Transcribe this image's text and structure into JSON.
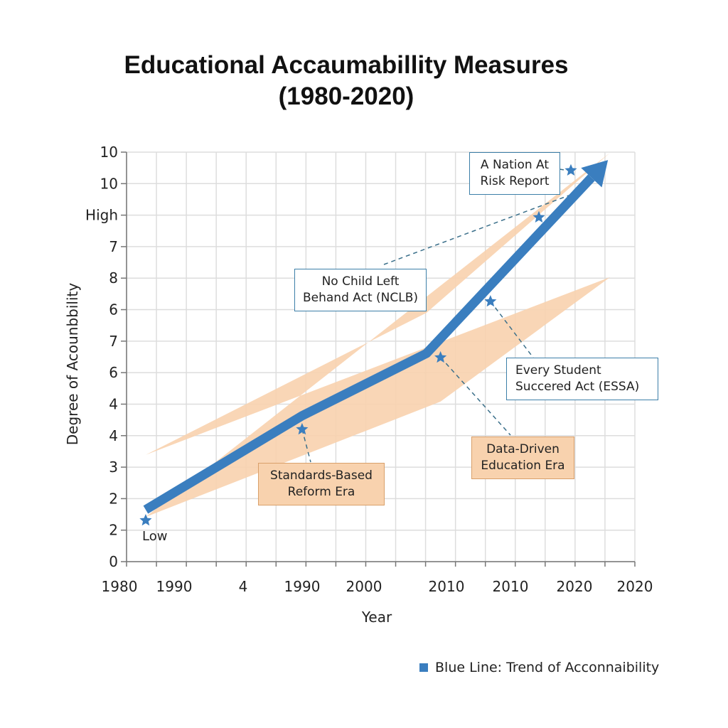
{
  "chart_data": {
    "type": "line",
    "title_line1": "Educational Accaumabillity Measures",
    "title_line2": "(1980-2020)",
    "xlabel": "Year",
    "ylabel": "Degree of Acounbbility",
    "x_tick_labels": [
      "1980",
      "1990",
      "4",
      "1990",
      "2000",
      "2010",
      "2010",
      "2020",
      "2020"
    ],
    "y_tick_labels": [
      "0",
      "2",
      "2",
      "3",
      "4",
      "4",
      "6",
      "7",
      "6",
      "8",
      "7",
      "High",
      "10",
      "10"
    ],
    "xlim": [
      0,
      17
    ],
    "ylim": [
      0,
      13
    ],
    "grid": true,
    "legend": {
      "position": "bottom-right",
      "label": "Blue Line: Trend of Acconnaibility"
    },
    "colors": {
      "trend": "#3a7ebf",
      "band": "#f8d2ae",
      "grid": "#dddddd",
      "star": "#3a7ebf"
    },
    "trend_line": [
      [
        0.64,
        1.65
      ],
      [
        5.87,
        4.63
      ],
      [
        10.03,
        6.61
      ],
      [
        16.1,
        12.75
      ]
    ],
    "band_upper": [
      [
        0.64,
        3.39
      ],
      [
        10.03,
        7.9
      ],
      [
        16.17,
        12.98
      ]
    ],
    "band_lower": [
      [
        0.64,
        1.42
      ],
      [
        10.5,
        5.08
      ],
      [
        16.17,
        9.03
      ]
    ],
    "low_label": "Low",
    "milestones": [
      {
        "x": 0.64,
        "y": 1.31
      },
      {
        "x": 5.87,
        "y": 4.2,
        "label": "Standards-Based Reform Era"
      },
      {
        "x": 10.5,
        "y": 6.48,
        "label": "Data-Driven Education Era"
      },
      {
        "x": 12.17,
        "y": 8.26,
        "label": "Every Student Succered Act (ESSA)"
      },
      {
        "x": 13.79,
        "y": 10.93,
        "label": "No Child Left Behand Act (NCLB)"
      },
      {
        "x": 14.86,
        "y": 12.42,
        "label": "A Nation At Risk Report"
      }
    ],
    "annotations": {
      "nation_1": "A Nation At",
      "nation_2": "Risk Report",
      "nclb_1": "No Child Left",
      "nclb_2": "Behand Act (NCLB)",
      "essa_1": "Every Student",
      "essa_2": "Succered Act (ESSA)",
      "data_1": "Data-Driven",
      "data_2": "Education Era",
      "std_1": "Standards-Based",
      "std_2": "Reform Era"
    }
  }
}
